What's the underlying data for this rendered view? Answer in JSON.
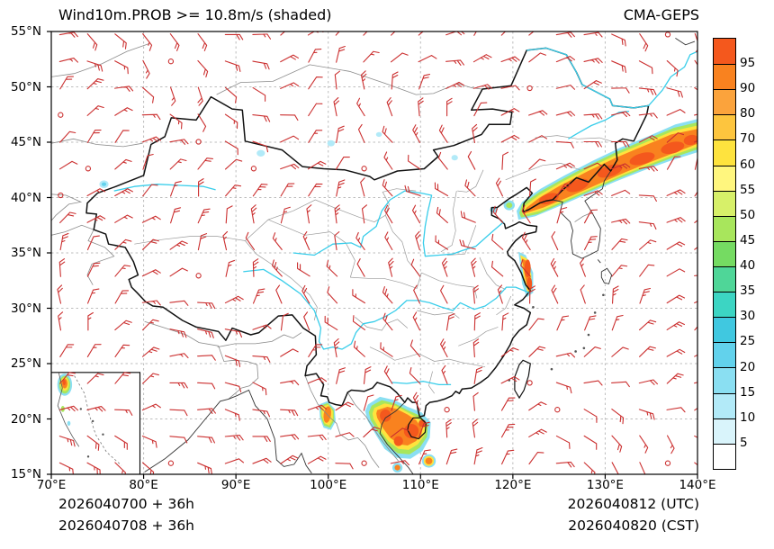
{
  "header": {
    "title": "Wind10m.PROB >= 10.8m/s (shaded)",
    "model": "CMA-GEPS"
  },
  "footer": {
    "init_utc": "2026040700 + 36h",
    "init_cst": "2026040708 + 36h",
    "valid_utc": "2026040812 (UTC)",
    "valid_cst": "2026040820 (CST)"
  },
  "chart_data": {
    "type": "heatmap",
    "title": "Wind10m.PROB >= 10.8m/s (shaded)",
    "model": "CMA-GEPS",
    "variable": "Probability of 10 m wind speed >= 10.8 m/s",
    "units": "%",
    "projection": "equirectangular lat/lon over China and surroundings",
    "lon_range": [
      70,
      140
    ],
    "lat_range": [
      15,
      55
    ],
    "grid": "dashed gray graticule, 10 deg lon x 5 deg lat",
    "x_ticks": [
      {
        "value": 70,
        "label": "70°E"
      },
      {
        "value": 80,
        "label": "80°E"
      },
      {
        "value": 90,
        "label": "90°E"
      },
      {
        "value": 100,
        "label": "100°E"
      },
      {
        "value": 110,
        "label": "110°E"
      },
      {
        "value": 120,
        "label": "120°E"
      },
      {
        "value": 130,
        "label": "130°E"
      },
      {
        "value": 140,
        "label": "140°E"
      }
    ],
    "y_ticks": [
      {
        "value": 55,
        "label": "55°N"
      },
      {
        "value": 50,
        "label": "50°N"
      },
      {
        "value": 45,
        "label": "45°N"
      },
      {
        "value": 40,
        "label": "40°N"
      },
      {
        "value": 35,
        "label": "35°N"
      },
      {
        "value": 30,
        "label": "30°N"
      },
      {
        "value": 25,
        "label": "25°N"
      },
      {
        "value": 20,
        "label": "20°N"
      },
      {
        "value": 15,
        "label": "15°N"
      }
    ],
    "colorbar": {
      "position": "right",
      "labels": [
        "95",
        "90",
        "80",
        "70",
        "60",
        "55",
        "50",
        "45",
        "40",
        "35",
        "30",
        "25",
        "20",
        "15",
        "10",
        "5"
      ],
      "colors": [
        "#f4581d",
        "#f9821f",
        "#fba33c",
        "#fdc53e",
        "#fee33e",
        "#fff67e",
        "#d7f069",
        "#a8e65c",
        "#75db62",
        "#4fd698",
        "#3cd5c3",
        "#40c8e0",
        "#62d2ec",
        "#8adff2",
        "#b2eaf8",
        "#d9f4fb",
        "#ffffff"
      ]
    },
    "wind_barbs": {
      "symbol": "wind barb (calm shown as open circle)",
      "color": "#cb2f2f",
      "coverage": "regular grid over full domain, ~3 deg lon x ~2.4 deg lat"
    },
    "shaded_regions": [
      {
        "area": "Northeast China / Sea of Japan diagonal band, 121-140°E, 38-47°N",
        "peak_prob": ">95"
      },
      {
        "area": "Jiangsu coastal strip, 120.5-122.2°E, 31-35°N",
        "peak_prob": ">95"
      },
      {
        "area": "Gulf of Tonkin / Hainan / north Vietnam, 104-111°E, 15.5-21.5°N",
        "peak_prob": ">95"
      },
      {
        "area": "NW Laos / Myanmar-Thailand, 99-101°E, 19-21.5°N",
        "peak_prob": "60-90"
      },
      {
        "area": "scattered weak spots, N Xinjiang and N China, 10-25",
        "peak_prob": "10-25"
      },
      {
        "area": "South China Sea inset (lower-left), coastal Vietnam blob",
        "peak_prob": ">90"
      }
    ],
    "legend_position": "right colorbar",
    "map_features": "China national border (black), province borders (gray), rivers (cyan), SCS inset box lower-left"
  }
}
